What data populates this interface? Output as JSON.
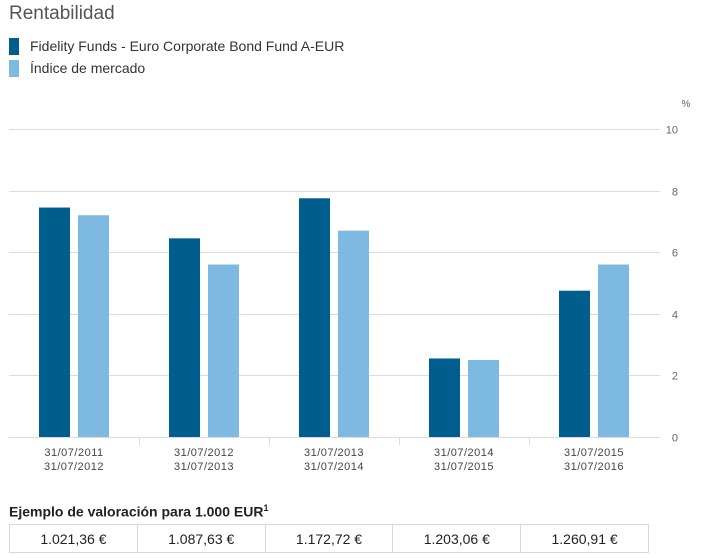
{
  "title": "Rentabilidad",
  "colors": {
    "fund": "#005e8f",
    "index": "#7db9e0",
    "grid": "#dcdcdc",
    "tick": "#666666"
  },
  "chart_data": {
    "type": "bar",
    "categories": [
      [
        "31/07/2011",
        "31/07/2012"
      ],
      [
        "31/07/2012",
        "31/07/2013"
      ],
      [
        "31/07/2013",
        "31/07/2014"
      ],
      [
        "31/07/2014",
        "31/07/2015"
      ],
      [
        "31/07/2015",
        "31/07/2016"
      ]
    ],
    "series": [
      {
        "name": "Fidelity Funds - Euro Corporate Bond Fund A-EUR",
        "color": "#005e8f",
        "values": [
          7.45,
          6.45,
          7.75,
          2.55,
          4.75
        ]
      },
      {
        "name": "Índice de mercado",
        "color": "#7db9e0",
        "values": [
          7.2,
          5.6,
          6.7,
          2.5,
          5.6
        ]
      }
    ],
    "yunit": "%",
    "ylim": [
      0,
      10
    ],
    "yticks": [
      0,
      2,
      4,
      6,
      8,
      10
    ],
    "grid": true,
    "legend_position": "top-left"
  },
  "valuation": {
    "title": "Ejemplo de valoración para 1.000 EUR",
    "footnote": "1",
    "values": [
      "1.021,36 €",
      "1.087,63 €",
      "1.172,72 €",
      "1.203,06 €",
      "1.260,91 €"
    ]
  }
}
